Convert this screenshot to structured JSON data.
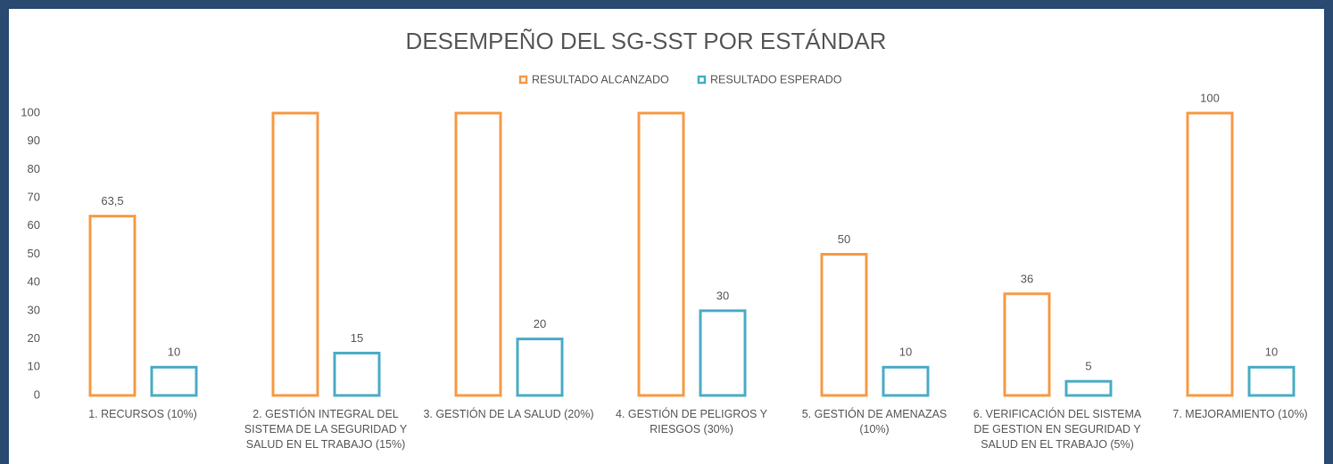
{
  "chart_data": {
    "type": "bar",
    "title": "DESEMPEÑO DEL SG-SST POR ESTÁNDAR",
    "categories": [
      "1. RECURSOS (10%)",
      "2. GESTIÓN INTEGRAL DEL SISTEMA DE LA SEGURIDAD Y SALUD EN EL TRABAJO (15%)",
      "3. GESTIÓN DE LA SALUD (20%)",
      "4. GESTIÓN DE PELIGROS Y RIESGOS (30%)",
      "5. GESTIÓN DE AMENAZAS (10%)",
      "6. VERIFICACIÓN DEL SISTEMA DE GESTION EN SEGURIDAD Y SALUD EN EL TRABAJO (5%)",
      "7. MEJORAMIENTO (10%)"
    ],
    "series": [
      {
        "name": "RESULTADO ALCANZADO",
        "color": "#f79a46",
        "values": [
          63.5,
          100,
          100,
          100,
          50,
          36,
          100
        ],
        "value_labels": [
          "63,5",
          null,
          null,
          null,
          "50",
          "36",
          "100"
        ]
      },
      {
        "name": "RESULTADO ESPERADO",
        "color": "#4bacc6",
        "values": [
          10,
          15,
          20,
          30,
          10,
          5,
          10
        ]
      }
    ],
    "ylim": [
      0,
      100
    ],
    "yticks": [
      0,
      10,
      20,
      30,
      40,
      50,
      60,
      70,
      80,
      90,
      100
    ],
    "grid": false,
    "legend": "top"
  }
}
